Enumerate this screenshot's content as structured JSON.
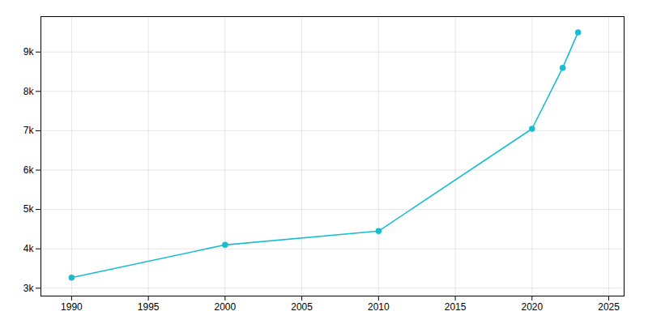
{
  "chart_data": {
    "type": "line",
    "x": [
      1990,
      2000,
      2010,
      2020,
      2022,
      2023
    ],
    "values": [
      3270,
      4100,
      4450,
      7050,
      8600,
      9500
    ],
    "color": "#17BECF",
    "marker": "circle",
    "xlim": [
      1988,
      2026
    ],
    "ylim": [
      2800,
      9900
    ],
    "xticks": [
      1990,
      1995,
      2000,
      2005,
      2010,
      2015,
      2020,
      2025
    ],
    "yticks": [
      {
        "value": 3000,
        "label": "3k"
      },
      {
        "value": 4000,
        "label": "4k"
      },
      {
        "value": 5000,
        "label": "5k"
      },
      {
        "value": 6000,
        "label": "6k"
      },
      {
        "value": 7000,
        "label": "7k"
      },
      {
        "value": 8000,
        "label": "8k"
      },
      {
        "value": 9000,
        "label": "9k"
      }
    ],
    "grid": true
  }
}
